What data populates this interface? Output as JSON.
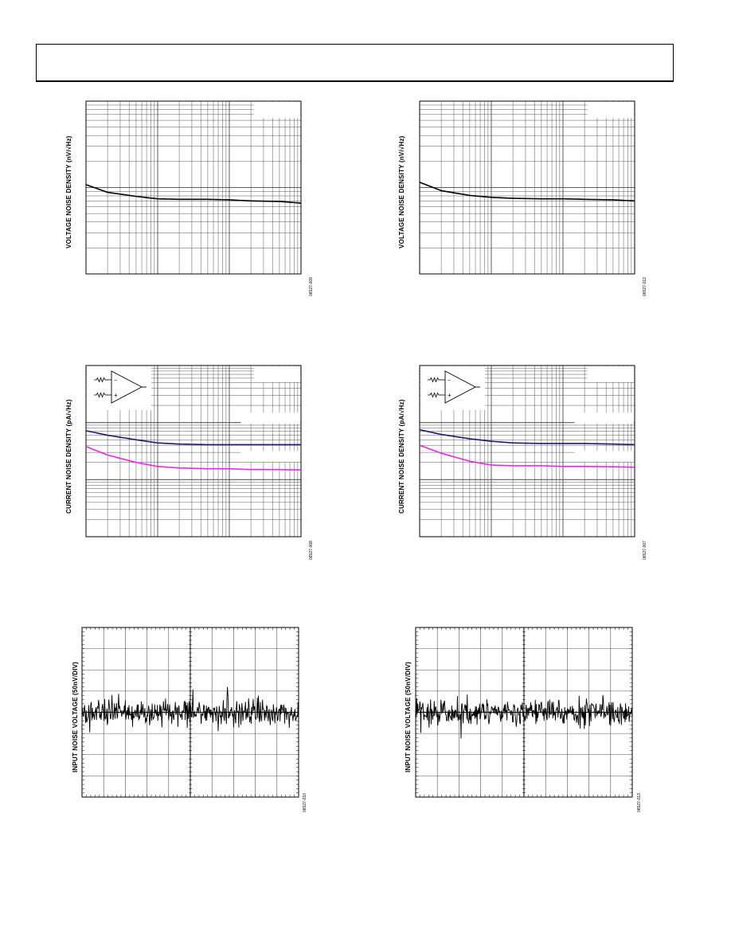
{
  "page": {
    "header_text": ""
  },
  "chart_data": [
    {
      "id": "vn-left",
      "type": "line",
      "ylabel": "VOLTAGE NOISE DENSITY (nV/√Hz)",
      "xscale": "log",
      "yscale": "log",
      "xlim": [
        1,
        1000
      ],
      "ylim": [
        1,
        100
      ],
      "grid": true,
      "x": [
        1,
        2,
        5,
        10,
        20,
        50,
        100,
        200,
        500,
        1000
      ],
      "series": [
        {
          "color": "#000000",
          "values": [
            10.8,
            8.8,
            7.9,
            7.4,
            7.3,
            7.3,
            7.2,
            7.0,
            6.9,
            6.6
          ]
        }
      ],
      "code": "06527-009"
    },
    {
      "id": "vn-right",
      "type": "line",
      "ylabel": "VOLTAGE NOISE DENSITY (nV/√Hz)",
      "xscale": "log",
      "yscale": "log",
      "xlim": [
        1,
        1000
      ],
      "ylim": [
        1,
        100
      ],
      "grid": true,
      "x": [
        1,
        2,
        5,
        10,
        20,
        50,
        100,
        200,
        500,
        1000
      ],
      "series": [
        {
          "color": "#000000",
          "values": [
            11.5,
            9.2,
            8.1,
            7.7,
            7.5,
            7.4,
            7.4,
            7.3,
            7.2,
            7.0
          ]
        }
      ],
      "code": "06527-012"
    },
    {
      "id": "in-left",
      "type": "line",
      "ylabel": "CURRENT NOISE DENSITY (pA/√Hz)",
      "xscale": "log",
      "yscale": "log",
      "xlim": [
        1,
        1000
      ],
      "ylim": [
        0.01,
        10
      ],
      "grid": true,
      "schematic": true,
      "x": [
        1,
        2,
        5,
        10,
        20,
        50,
        100,
        200,
        500,
        1000
      ],
      "series": [
        {
          "color": "#1a1a7a",
          "values": [
            0.72,
            0.6,
            0.5,
            0.44,
            0.42,
            0.41,
            0.41,
            0.41,
            0.41,
            0.41
          ]
        },
        {
          "color": "#ee22ee",
          "values": [
            0.38,
            0.27,
            0.2,
            0.17,
            0.16,
            0.155,
            0.155,
            0.15,
            0.15,
            0.148
          ]
        }
      ],
      "code": "06527-008"
    },
    {
      "id": "in-right",
      "type": "line",
      "ylabel": "CURRENT NOISE DENSITY (pA/√Hz)",
      "xscale": "log",
      "yscale": "log",
      "xlim": [
        1,
        1000
      ],
      "ylim": [
        0.01,
        10
      ],
      "grid": true,
      "schematic": true,
      "x": [
        1,
        2,
        5,
        10,
        20,
        50,
        100,
        200,
        500,
        1000
      ],
      "series": [
        {
          "color": "#1a1a7a",
          "values": [
            0.75,
            0.62,
            0.52,
            0.47,
            0.44,
            0.43,
            0.43,
            0.43,
            0.42,
            0.41
          ]
        },
        {
          "color": "#ee22ee",
          "values": [
            0.4,
            0.29,
            0.21,
            0.18,
            0.175,
            0.175,
            0.17,
            0.17,
            0.168,
            0.165
          ]
        }
      ],
      "code": "06527-007"
    },
    {
      "id": "noise-left",
      "type": "line",
      "ylabel": "INPUT NOISE VOLTAGE (50nV/DIV)",
      "grid": true,
      "divisions": {
        "x": 10,
        "y": 8
      },
      "seed": 11,
      "code": "06527-010"
    },
    {
      "id": "noise-right",
      "type": "line",
      "ylabel": "INPUT NOISE VOLTAGE (50nV/DIV)",
      "grid": true,
      "divisions": {
        "x": 10,
        "y": 8
      },
      "seed": 29,
      "code": "06527-013"
    }
  ]
}
